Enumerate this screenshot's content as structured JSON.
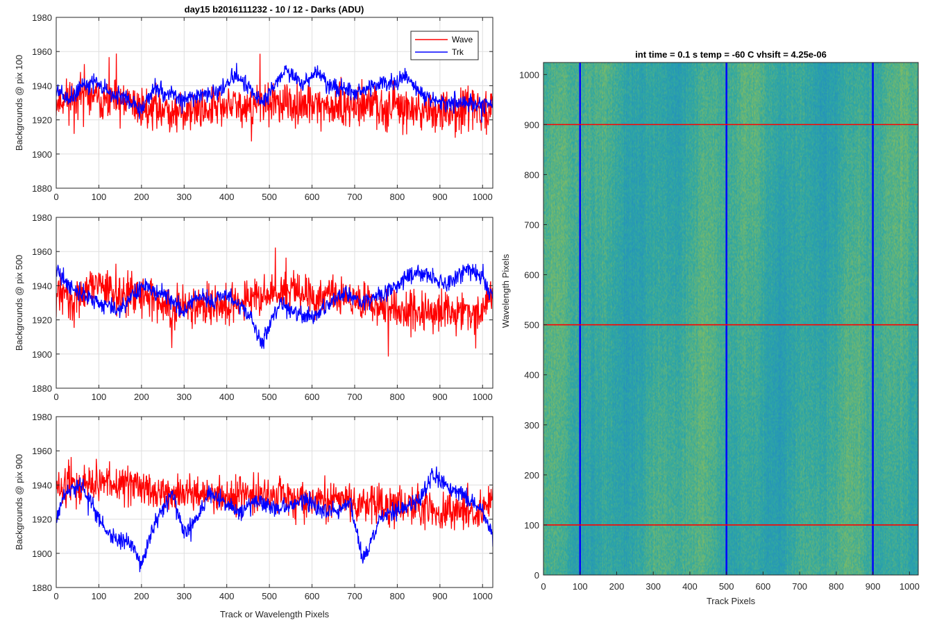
{
  "figure": {
    "title": "day15 b2016111232 - 10 / 12 - Darks (ADU)",
    "image_title": "int time = 0.1 s   temp = -60 C   vhsift = 4.25e-06"
  },
  "colors": {
    "wave": "#ff0000",
    "trk": "#0000ff",
    "grid": "#dfdfdf",
    "heatmap_low": "#1f86c9",
    "heatmap_mid": "#2ea7a4",
    "heatmap_high": "#8dbf5a"
  },
  "legend": {
    "placement": "top-right",
    "wave_label": "Wave",
    "trk_label": "Trk"
  },
  "chart_data": [
    {
      "type": "line",
      "ylabel": "Backgrounds @ pix 100",
      "xlabel": "",
      "xlim": [
        0,
        1024
      ],
      "ylim": [
        1880,
        1980
      ],
      "xticks": [
        0,
        100,
        200,
        300,
        400,
        500,
        600,
        700,
        800,
        900,
        1000
      ],
      "yticks": [
        1880,
        1900,
        1920,
        1940,
        1960,
        1980
      ],
      "grid": true,
      "series": [
        {
          "name": "Wave",
          "color": "#ff0000",
          "x": [
            0,
            50,
            100,
            150,
            200,
            250,
            300,
            350,
            400,
            450,
            500,
            550,
            600,
            650,
            700,
            750,
            800,
            850,
            900,
            950,
            1000,
            1024
          ],
          "y": [
            1930,
            1935,
            1933,
            1930,
            1928,
            1926,
            1925,
            1927,
            1928,
            1929,
            1930,
            1928,
            1929,
            1928,
            1927,
            1929,
            1928,
            1926,
            1925,
            1926,
            1925,
            1926
          ],
          "noise": 12,
          "seed": 11
        },
        {
          "name": "Trk",
          "color": "#0000ff",
          "x": [
            0,
            30,
            60,
            100,
            130,
            160,
            200,
            230,
            260,
            300,
            330,
            370,
            400,
            420,
            450,
            480,
            500,
            540,
            560,
            580,
            610,
            640,
            680,
            700,
            740,
            780,
            820,
            850,
            880,
            900,
            950,
            1000,
            1024
          ],
          "y": [
            1938,
            1932,
            1940,
            1942,
            1935,
            1933,
            1925,
            1940,
            1935,
            1932,
            1934,
            1935,
            1940,
            1947,
            1940,
            1930,
            1935,
            1950,
            1945,
            1940,
            1948,
            1940,
            1938,
            1935,
            1940,
            1942,
            1945,
            1935,
            1932,
            1930,
            1930,
            1928,
            1930
          ],
          "noise": 5,
          "seed": 21
        }
      ]
    },
    {
      "type": "line",
      "ylabel": "Backgrounds @ pix 500",
      "xlabel": "",
      "xlim": [
        0,
        1024
      ],
      "ylim": [
        1880,
        1980
      ],
      "xticks": [
        0,
        100,
        200,
        300,
        400,
        500,
        600,
        700,
        800,
        900,
        1000
      ],
      "yticks": [
        1880,
        1900,
        1920,
        1940,
        1960,
        1980
      ],
      "grid": true,
      "series": [
        {
          "name": "Wave",
          "color": "#ff0000",
          "x": [
            0,
            50,
            100,
            150,
            200,
            250,
            300,
            350,
            400,
            450,
            500,
            550,
            600,
            650,
            700,
            750,
            800,
            850,
            900,
            950,
            1000,
            1024
          ],
          "y": [
            1935,
            1934,
            1940,
            1936,
            1935,
            1930,
            1925,
            1930,
            1928,
            1932,
            1935,
            1937,
            1932,
            1935,
            1932,
            1928,
            1926,
            1925,
            1925,
            1924,
            1925,
            1935
          ],
          "noise": 12,
          "seed": 31
        },
        {
          "name": "Trk",
          "color": "#0000ff",
          "x": [
            0,
            30,
            60,
            100,
            150,
            200,
            250,
            300,
            330,
            370,
            400,
            430,
            460,
            480,
            520,
            560,
            600,
            640,
            680,
            720,
            760,
            800,
            840,
            880,
            920,
            960,
            1000,
            1024
          ],
          "y": [
            1948,
            1940,
            1935,
            1930,
            1925,
            1940,
            1935,
            1925,
            1935,
            1930,
            1935,
            1928,
            1920,
            1905,
            1930,
            1925,
            1920,
            1930,
            1935,
            1930,
            1935,
            1940,
            1948,
            1945,
            1940,
            1950,
            1945,
            1932
          ],
          "noise": 5,
          "seed": 41
        }
      ]
    },
    {
      "type": "line",
      "ylabel": "Backgrounds @ pix 900",
      "xlabel": "Track or Wavelength Pixels",
      "xlim": [
        0,
        1024
      ],
      "ylim": [
        1880,
        1980
      ],
      "xticks": [
        0,
        100,
        200,
        300,
        400,
        500,
        600,
        700,
        800,
        900,
        1000
      ],
      "yticks": [
        1880,
        1900,
        1920,
        1940,
        1960,
        1980
      ],
      "grid": true,
      "series": [
        {
          "name": "Wave",
          "color": "#ff0000",
          "x": [
            0,
            50,
            100,
            150,
            200,
            250,
            300,
            350,
            400,
            450,
            500,
            550,
            600,
            650,
            700,
            750,
            800,
            850,
            900,
            950,
            1000,
            1024
          ],
          "y": [
            1938,
            1940,
            1942,
            1940,
            1938,
            1936,
            1935,
            1935,
            1933,
            1934,
            1933,
            1932,
            1931,
            1930,
            1930,
            1928,
            1928,
            1926,
            1925,
            1925,
            1925,
            1930
          ],
          "noise": 11,
          "seed": 51
        },
        {
          "name": "Trk",
          "color": "#0000ff",
          "x": [
            0,
            20,
            60,
            90,
            120,
            150,
            180,
            200,
            230,
            270,
            300,
            330,
            360,
            400,
            430,
            460,
            490,
            520,
            550,
            580,
            620,
            660,
            690,
            720,
            760,
            800,
            850,
            880,
            910,
            950,
            1000,
            1024
          ],
          "y": [
            1920,
            1935,
            1940,
            1925,
            1912,
            1908,
            1905,
            1892,
            1918,
            1935,
            1912,
            1920,
            1935,
            1928,
            1925,
            1930,
            1930,
            1925,
            1928,
            1932,
            1925,
            1925,
            1930,
            1895,
            1920,
            1925,
            1930,
            1945,
            1940,
            1935,
            1925,
            1910
          ],
          "noise": 5,
          "seed": 61
        }
      ]
    },
    {
      "type": "heatmap",
      "title": "int time = 0.1 s   temp = -60 C   vhsift = 4.25e-06",
      "xlabel": "Track Pixels",
      "ylabel": "Wavelength Pixels",
      "xlim": [
        0,
        1024
      ],
      "ylim": [
        0,
        1024
      ],
      "xticks": [
        0,
        100,
        200,
        300,
        400,
        500,
        600,
        700,
        800,
        900,
        1000
      ],
      "yticks": [
        0,
        100,
        200,
        300,
        400,
        500,
        600,
        700,
        800,
        900,
        1000
      ],
      "vertical_lines": {
        "color": "#0000ff",
        "x": [
          100,
          500,
          900
        ]
      },
      "horizontal_lines": {
        "color": "#ff0000",
        "y": [
          100,
          500,
          900
        ]
      }
    }
  ]
}
